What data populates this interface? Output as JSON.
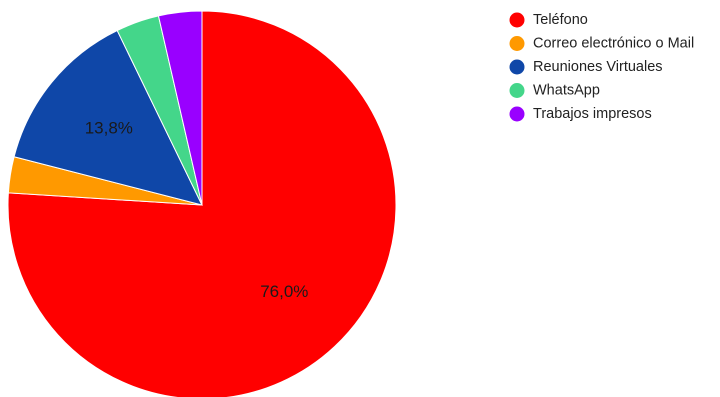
{
  "chart_data": {
    "type": "pie",
    "title": "",
    "legend_position": "right",
    "start": "top",
    "direction": "clockwise",
    "slices": [
      {
        "label": "Teléfono",
        "value": 76.0,
        "color": "#ff0000",
        "value_label": "76,0%"
      },
      {
        "label": "Correo electrónico o Mail",
        "value": 3.0,
        "color": "#ff9900",
        "value_label": ""
      },
      {
        "label": "Reuniones Virtuales",
        "value": 13.8,
        "color": "#0f47a8",
        "value_label": "13,8%"
      },
      {
        "label": "WhatsApp",
        "value": 3.6,
        "color": "#44d68a",
        "value_label": ""
      },
      {
        "label": "Trabajos impresos",
        "value": 3.6,
        "color": "#9900ff",
        "value_label": ""
      }
    ]
  }
}
